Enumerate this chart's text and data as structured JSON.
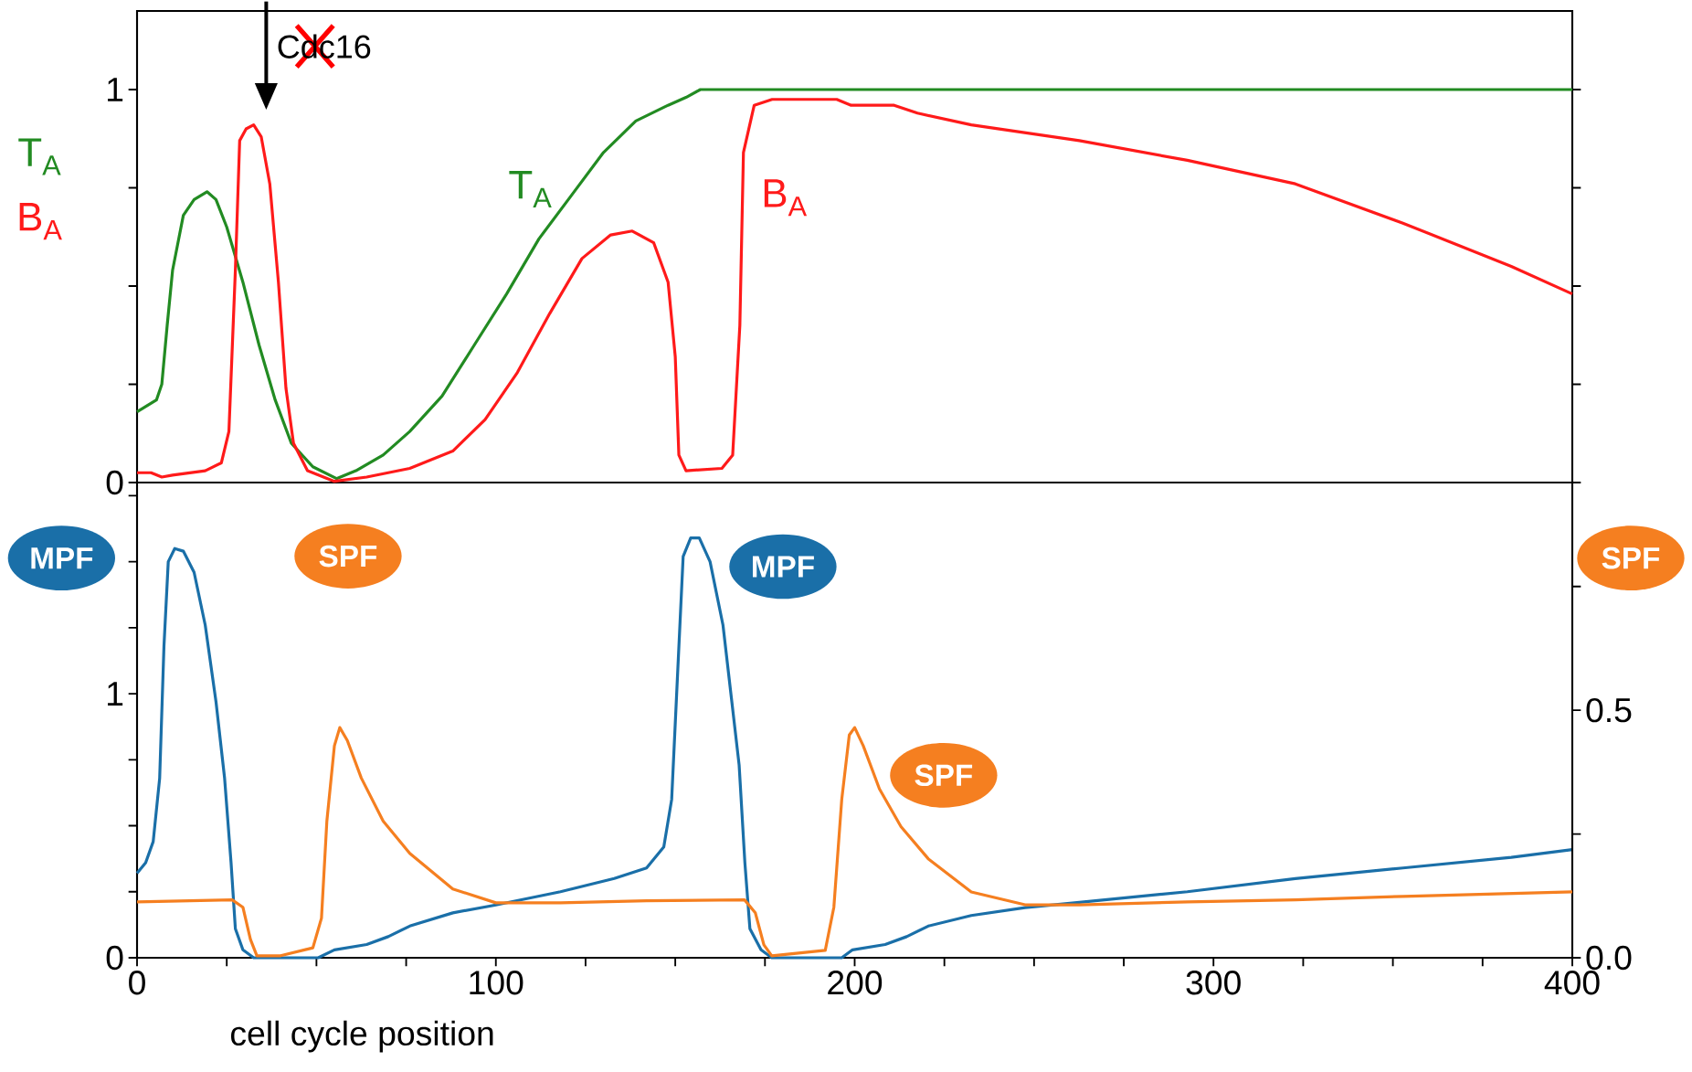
{
  "chart_data": [
    {
      "type": "line",
      "xlim": [
        0,
        400
      ],
      "ylim": [
        0,
        1.2
      ],
      "tick_labels": "y",
      "yticks": [
        0,
        {
          "value": 0.25,
          "label": null
        },
        {
          "value": 0.5,
          "label": null
        },
        {
          "value": 0.75,
          "label": null
        },
        1
      ],
      "series": [
        {
          "name": "T$_{A}$",
          "color": "#228b22",
          "x": [
            0,
            5.4,
            6.9,
            8.4,
            9.9,
            12.9,
            15.9,
            19.5,
            22,
            25,
            29.5,
            34,
            38.5,
            43,
            49,
            55.6,
            61,
            68.6,
            76,
            85,
            94,
            103,
            112,
            121,
            130,
            139,
            148,
            153,
            157,
            172,
            400
          ],
          "values": [
            0.18,
            0.21,
            0.25,
            0.4,
            0.54,
            0.68,
            0.72,
            0.74,
            0.72,
            0.65,
            0.51,
            0.35,
            0.21,
            0.1,
            0.04,
            0.01,
            0.03,
            0.07,
            0.13,
            0.22,
            0.35,
            0.48,
            0.62,
            0.73,
            0.84,
            0.92,
            0.96,
            0.98,
            1.0,
            1.0,
            1.0
          ]
        },
        {
          "name": "B$_{A}$",
          "color": "#ff1a1a",
          "x": [
            0,
            3.9,
            6.9,
            9.9,
            19,
            23.5,
            25.6,
            27.4,
            28.6,
            30.4,
            32.5,
            34.6,
            37,
            39.4,
            41.5,
            43.6,
            47.5,
            55,
            64,
            76,
            88,
            97,
            106,
            115,
            124,
            132,
            138,
            144,
            148,
            150,
            151,
            153,
            163,
            166,
            168,
            169,
            172,
            177,
            195,
            199,
            211,
            217.5,
            232.5,
            262.6,
            292.7,
            322.8,
            352.8,
            383,
            400
          ],
          "values": [
            0.025,
            0.025,
            0.014,
            0.019,
            0.03,
            0.05,
            0.13,
            0.54,
            0.87,
            0.9,
            0.91,
            0.88,
            0.76,
            0.51,
            0.24,
            0.1,
            0.03,
            0.003,
            0.014,
            0.036,
            0.08,
            0.16,
            0.28,
            0.43,
            0.57,
            0.63,
            0.64,
            0.61,
            0.51,
            0.32,
            0.07,
            0.03,
            0.036,
            0.07,
            0.4,
            0.84,
            0.96,
            0.975,
            0.975,
            0.96,
            0.96,
            0.94,
            0.91,
            0.87,
            0.82,
            0.76,
            0.66,
            0.55,
            0.48
          ]
        }
      ],
      "annotations": [
        "Cdc16"
      ]
    },
    {
      "type": "line",
      "xlim": [
        0,
        400
      ],
      "ylim": [
        0,
        1.8
      ],
      "y2lim": [
        0,
        0.96
      ],
      "xlabel": "cell cycle position",
      "xticks": [
        0,
        {
          "value": 25,
          "label": null
        },
        {
          "value": 50,
          "label": null
        },
        {
          "value": 75,
          "label": null
        },
        100,
        {
          "value": 125,
          "label": null
        },
        {
          "value": 150,
          "label": null
        },
        {
          "value": 175,
          "label": null
        },
        200,
        {
          "value": 225,
          "label": null
        },
        {
          "value": 250,
          "label": null
        },
        {
          "value": 275,
          "label": null
        },
        300,
        {
          "value": 325,
          "label": null
        },
        {
          "value": 350,
          "label": null
        },
        {
          "value": 375,
          "label": null
        },
        400
      ],
      "yticks": [
        0,
        {
          "value": 0.25,
          "label": null
        },
        {
          "value": 0.5,
          "label": null
        },
        {
          "value": 0.75,
          "label": null
        },
        1,
        {
          "value": 1.25,
          "label": null
        },
        {
          "value": 1.5,
          "label": null
        },
        {
          "value": 1.75,
          "label": null
        }
      ],
      "y2ticks": [
        {
          "value": 0,
          "label": "0.0"
        },
        {
          "value": 0.25,
          "label": null
        },
        0.5,
        {
          "value": 0.75,
          "label": null
        }
      ],
      "series": [
        {
          "name": "MPF",
          "color": "#1a6fa8",
          "x": [
            0,
            2.4,
            4.5,
            6.3,
            7.5,
            8.7,
            10.5,
            12.9,
            15.9,
            19,
            22,
            24.4,
            26.2,
            27.4,
            29.5,
            32.5,
            50.5,
            55,
            64,
            70,
            76,
            88,
            100,
            118,
            133,
            142,
            146.8,
            149,
            150.7,
            152.2,
            154.3,
            156.7,
            159.7,
            163.3,
            167.8,
            169.4,
            170.8,
            173.9,
            176.9,
            196.4,
            199.4,
            208.5,
            214.5,
            220.5,
            232.5,
            247.5,
            262.6,
            292.7,
            322.8,
            352.8,
            383,
            400
          ],
          "values": [
            0.32,
            0.36,
            0.44,
            0.68,
            1.18,
            1.5,
            1.55,
            1.54,
            1.46,
            1.26,
            0.97,
            0.68,
            0.36,
            0.11,
            0.03,
            0,
            0,
            0.03,
            0.05,
            0.08,
            0.12,
            0.17,
            0.2,
            0.25,
            0.3,
            0.34,
            0.42,
            0.6,
            1.09,
            1.52,
            1.59,
            1.59,
            1.5,
            1.26,
            0.73,
            0.36,
            0.11,
            0.03,
            0,
            0,
            0.03,
            0.05,
            0.08,
            0.12,
            0.16,
            0.19,
            0.21,
            0.25,
            0.3,
            0.34,
            0.38,
            0.41
          ]
        },
        {
          "name": "SPF",
          "color": "#f57f20",
          "axis": "y2",
          "x": [
            0,
            26.5,
            29.5,
            31.6,
            33.4,
            40,
            49,
            51.4,
            52.9,
            55,
            56.5,
            58.6,
            62.5,
            68.6,
            76,
            88,
            100,
            118,
            142,
            169.3,
            172.3,
            174.7,
            176.9,
            191.8,
            194.2,
            196.4,
            198.5,
            200,
            202.4,
            206.9,
            212.9,
            220.5,
            232.5,
            247.5,
            262.6,
            292.7,
            322.8,
            352.8,
            400
          ],
          "values": [
            0.113,
            0.117,
            0.102,
            0.037,
            0.004,
            0.004,
            0.02,
            0.08,
            0.276,
            0.428,
            0.465,
            0.439,
            0.363,
            0.276,
            0.211,
            0.139,
            0.111,
            0.111,
            0.115,
            0.117,
            0.091,
            0.026,
            0.004,
            0.015,
            0.102,
            0.32,
            0.45,
            0.465,
            0.428,
            0.341,
            0.265,
            0.2,
            0.133,
            0.107,
            0.107,
            0.113,
            0.117,
            0.124,
            0.133
          ]
        }
      ]
    }
  ]
}
